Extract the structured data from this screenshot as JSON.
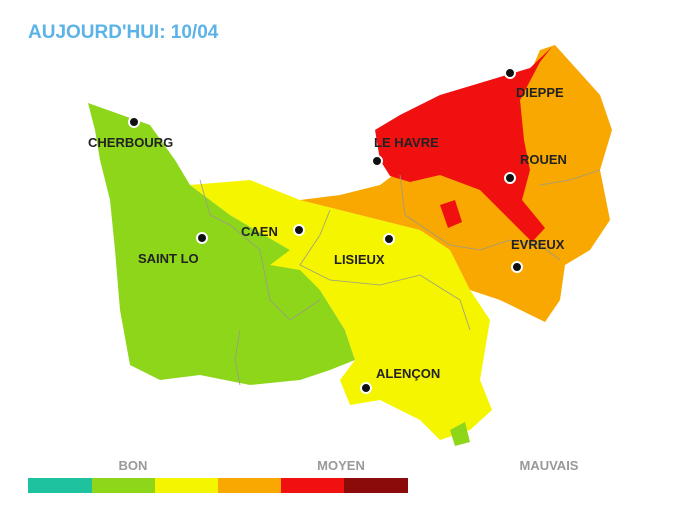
{
  "header": {
    "title": "AUJOURD'HUI: 10/04"
  },
  "cities": [
    "CHERBOURG",
    "DIEPPE",
    "LE HAVRE",
    "ROUEN",
    "CAEN",
    "SAINT LO",
    "LISIEUX",
    "EVREUX",
    "ALENÇON"
  ],
  "legend": {
    "labels": [
      "BON",
      "MOYEN",
      "MAUVAIS"
    ]
  }
}
